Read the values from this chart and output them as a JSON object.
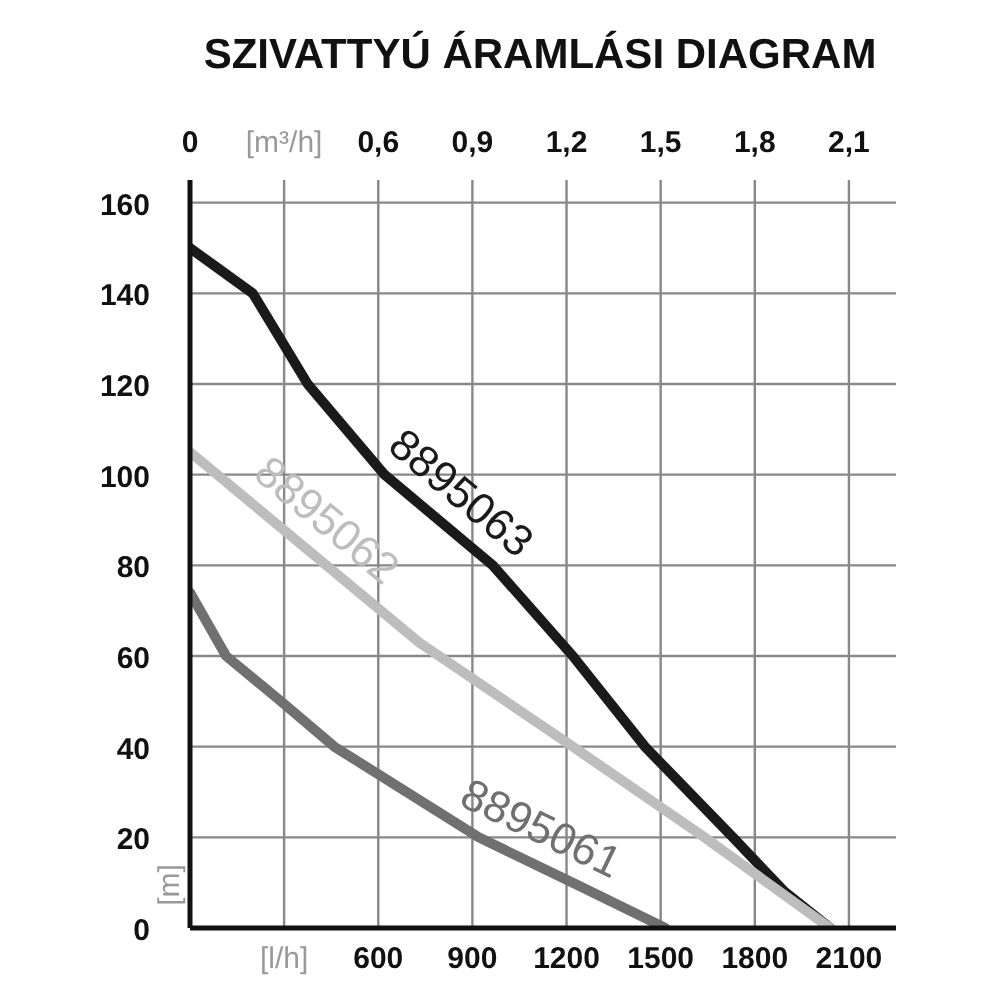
{
  "chart_data": {
    "type": "line",
    "title": "SZIVATTYÚ ÁRAMLÁSI DIAGRAM",
    "ylabel": "[m]",
    "xlim": [
      0,
      2250
    ],
    "xticks": [
      {
        "value": 300,
        "label": "[l/h]"
      },
      600,
      900,
      1200,
      1500,
      1800,
      2100
    ],
    "x2lim": [
      0,
      2.25
    ],
    "x2ticks": [
      0,
      {
        "value": 0.3,
        "label": "[m³/h]"
      },
      {
        "value": 0.6,
        "label": "0,6"
      },
      {
        "value": 0.9,
        "label": "0,9"
      },
      {
        "value": 1.2,
        "label": "1,2"
      },
      {
        "value": 1.5,
        "label": "1,5"
      },
      {
        "value": 1.8,
        "label": "1,8"
      },
      {
        "value": 2.1,
        "label": "2,1"
      }
    ],
    "ylim": [
      0,
      165
    ],
    "yticks": [
      0,
      20,
      40,
      60,
      80,
      100,
      120,
      140,
      160
    ],
    "grid": true,
    "marker": "none",
    "line_style": "solid",
    "series": [
      {
        "name": "8895063",
        "color": "#1a1a1a",
        "x": [
          0,
          200,
          375,
          620,
          965,
          1220,
          1450,
          1730,
          1895,
          2040
        ],
        "values": [
          150,
          140,
          120,
          100,
          80,
          60,
          40,
          20,
          8,
          0
        ]
      },
      {
        "name": "8895062",
        "color": "#bdbdbd",
        "x": [
          0,
          730,
          1220,
          1640,
          2040
        ],
        "values": [
          105,
          63,
          40,
          20,
          0
        ]
      },
      {
        "name": "8895061",
        "color": "#707070",
        "x": [
          0,
          115,
          290,
          460,
          920,
          1220,
          1515
        ],
        "values": [
          74,
          60,
          50,
          40,
          20,
          10,
          0
        ]
      }
    ]
  }
}
